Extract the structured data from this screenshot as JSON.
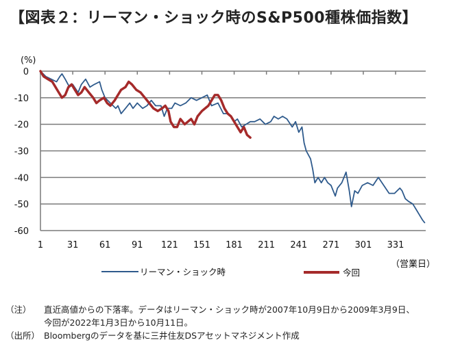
{
  "title": "【図表２：リーマン・ショック時のS&P500種株価指数】",
  "chart_data": {
    "type": "line",
    "title": "【図表２：リーマン・ショック時のS&P500種株価指数】",
    "ylabel": "(%)",
    "xlabel": "（営業日）",
    "ylim": [
      -60,
      0
    ],
    "xlim": [
      1,
      359
    ],
    "yticks": [
      0,
      -10,
      -20,
      -30,
      -40,
      -50,
      -60
    ],
    "ytick_labels": [
      "0",
      "-10",
      "-20",
      "-30",
      "-40",
      "-50",
      "-60"
    ],
    "xticks": [
      1,
      31,
      61,
      91,
      121,
      151,
      181,
      211,
      241,
      271,
      301,
      331
    ],
    "xtick_labels": [
      "1",
      "31",
      "61",
      "91",
      "121",
      "151",
      "181",
      "211",
      "241",
      "271",
      "301",
      "331"
    ],
    "grid": "horizontal",
    "legend_position": "bottom",
    "series": [
      {
        "name": "リーマン・ショック時",
        "color": "#2e5a8c",
        "x": [
          1,
          6,
          11,
          16,
          19,
          21,
          24,
          28,
          31,
          36,
          39,
          43,
          47,
          51,
          56,
          58,
          61,
          66,
          71,
          73,
          76,
          80,
          84,
          87,
          91,
          96,
          100,
          104,
          108,
          113,
          116,
          119,
          123,
          126,
          131,
          136,
          141,
          146,
          151,
          156,
          160,
          166,
          171,
          176,
          181,
          184,
          188,
          192,
          196,
          200,
          205,
          210,
          215,
          218,
          222,
          226,
          230,
          235,
          238,
          241,
          244,
          246,
          248,
          252,
          254,
          256,
          259,
          262,
          265,
          268,
          271,
          273,
          275,
          277,
          281,
          285,
          288,
          290,
          293,
          296,
          300,
          305,
          310,
          315,
          320,
          325,
          330,
          335,
          337,
          340,
          343,
          347,
          350,
          353,
          356,
          358
        ],
        "values": [
          0,
          -2,
          -3,
          -4,
          -2,
          -1,
          -3,
          -6,
          -5,
          -8,
          -5,
          -3,
          -6,
          -5,
          -4,
          -7,
          -10,
          -12,
          -14,
          -13,
          -16,
          -14,
          -12,
          -14,
          -12,
          -14,
          -13,
          -11,
          -13,
          -13,
          -17,
          -14,
          -14,
          -12,
          -13,
          -12,
          -10,
          -11,
          -10,
          -9,
          -13,
          -12,
          -16,
          -16,
          -19,
          -18,
          -21,
          -20,
          -19,
          -19,
          -18,
          -20,
          -19,
          -17,
          -18,
          -17,
          -18,
          -21,
          -19,
          -23,
          -21,
          -27,
          -30,
          -33,
          -37,
          -42,
          -40,
          -42,
          -40,
          -42,
          -43,
          -45,
          -47,
          -44,
          -42,
          -38,
          -45,
          -51,
          -45,
          -46,
          -43,
          -42,
          -43,
          -40,
          -43,
          -46,
          -46,
          -44,
          -45,
          -48,
          -49,
          -50,
          -52,
          -54,
          -56,
          -57
        ]
      },
      {
        "name": "今回",
        "color": "#a52a2a",
        "x": [
          1,
          4,
          8,
          12,
          15,
          18,
          21,
          24,
          27,
          30,
          33,
          36,
          39,
          42,
          46,
          50,
          53,
          56,
          60,
          63,
          66,
          70,
          73,
          76,
          80,
          83,
          86,
          90,
          94,
          98,
          102,
          106,
          110,
          114,
          117,
          120,
          122,
          125,
          128,
          131,
          135,
          138,
          141,
          144,
          147,
          151,
          154,
          157,
          160,
          163,
          166,
          169,
          172,
          175,
          178,
          181,
          184,
          187,
          190,
          193,
          196
        ],
        "values": [
          0,
          -2,
          -3,
          -4,
          -6,
          -8,
          -10,
          -9,
          -6,
          -5,
          -7,
          -9,
          -8,
          -6,
          -8,
          -10,
          -12,
          -11,
          -10,
          -12,
          -13,
          -11,
          -9,
          -7,
          -6,
          -4,
          -5,
          -7,
          -8,
          -10,
          -12,
          -14,
          -15,
          -14,
          -13,
          -15,
          -19,
          -21,
          -21,
          -18,
          -20,
          -19,
          -18,
          -20,
          -17,
          -15,
          -14,
          -13,
          -11,
          -9,
          -9,
          -11,
          -14,
          -16,
          -17,
          -19,
          -21,
          -23,
          -21,
          -24,
          -25
        ]
      }
    ]
  },
  "notes": [
    {
      "key": "（注）",
      "lines": [
        "直近高値からの下落率。データはリーマン・ショック時が2007年10月9日から2009年3月9日、",
        "今回が2022年1月3日から10月11日。"
      ]
    },
    {
      "key": "（出所）",
      "lines": [
        "Bloombergのデータを基に三井住友DSアセットマネジメント作成"
      ]
    }
  ]
}
